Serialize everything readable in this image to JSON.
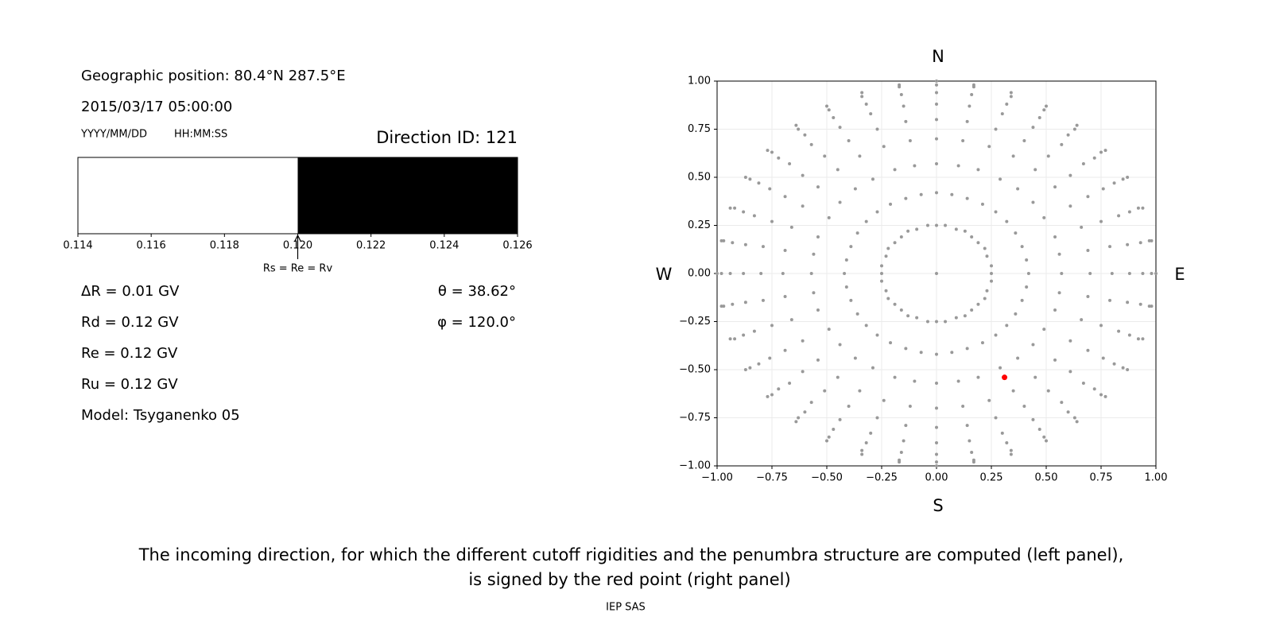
{
  "info": {
    "position": "Geographic position: 80.4°N 287.5°E",
    "datetime": "2015/03/17 05:00:00",
    "date_format": "YYYY/MM/DD",
    "time_format": "HH:MM:SS",
    "direction_id": "Direction ID: 121",
    "rigidities": [
      "ΔR = 0.01 GV",
      "Rd = 0.12 GV",
      "Re = 0.12 GV",
      "Ru = 0.12 GV",
      "Model: Tsyganenko 05"
    ],
    "angles": [
      "θ = 38.62°",
      "φ = 120.0°"
    ]
  },
  "chart_data": [
    {
      "type": "penumbra",
      "xlim": [
        0.114,
        0.126
      ],
      "xticks": [
        0.114,
        0.116,
        0.118,
        {
          "value": 0.12,
          "label": "0.120"
        },
        0.122,
        0.124,
        0.126
      ],
      "segments": [
        {
          "start": 0.114,
          "end": 0.12,
          "color": "#ffffff"
        },
        {
          "start": 0.12,
          "end": 0.126,
          "color": "#000000"
        }
      ],
      "marker": {
        "value": 0.12,
        "label": "Rs = Re = Rv"
      }
    },
    {
      "type": "scatter",
      "xlim": [
        -1,
        1
      ],
      "ylim": [
        -1,
        1
      ],
      "xticks": [
        {
          "value": -1,
          "label": "−1.00"
        },
        {
          "value": -0.75,
          "label": "−0.75"
        },
        {
          "value": -0.5,
          "label": "−0.50"
        },
        {
          "value": -0.25,
          "label": "−0.25"
        },
        {
          "value": 0,
          "label": "0.00"
        },
        {
          "value": 0.25,
          "label": "0.25"
        },
        {
          "value": 0.5,
          "label": "0.50"
        },
        {
          "value": 0.75,
          "label": "0.75"
        },
        {
          "value": 1,
          "label": "1.00"
        }
      ],
      "yticks": [
        {
          "value": -1,
          "label": "−1.00"
        },
        {
          "value": -0.75,
          "label": "−0.75"
        },
        {
          "value": -0.5,
          "label": "−0.50"
        },
        {
          "value": -0.25,
          "label": "−0.25"
        },
        {
          "value": 0,
          "label": "0.00"
        },
        {
          "value": 0.25,
          "label": "0.25"
        },
        {
          "value": 0.5,
          "label": "0.50"
        },
        {
          "value": 0.75,
          "label": "0.75"
        },
        {
          "value": 1,
          "label": "1.00"
        }
      ],
      "grid": true,
      "compass": {
        "north": "N",
        "south": "S",
        "west": "W",
        "east": "E"
      },
      "series": [
        {
          "color": "#999999",
          "x": [
            0,
            0.04,
            0.09,
            0.13,
            0.16,
            0.19,
            0.22,
            0.23,
            0.25,
            0.25,
            0.25,
            0.23,
            0.22,
            0.19,
            0.16,
            0.13,
            0.09,
            0.04,
            0,
            -0.04,
            -0.09,
            -0.13,
            -0.16,
            -0.19,
            -0.22,
            -0.23,
            -0.25,
            -0.25,
            -0.25,
            -0.23,
            -0.22,
            -0.19,
            -0.16,
            -0.13,
            -0.09,
            -0.04,
            0,
            0.07,
            0.14,
            0.21,
            0.27,
            0.32,
            0.36,
            0.39,
            0.41,
            0.42,
            0.41,
            0.39,
            0.36,
            0.32,
            0.27,
            0.21,
            0.14,
            0.07,
            0,
            -0.07,
            -0.14,
            -0.21,
            -0.27,
            -0.32,
            -0.36,
            -0.39,
            -0.41,
            -0.42,
            -0.41,
            -0.39,
            -0.36,
            -0.32,
            -0.27,
            -0.21,
            -0.14,
            -0.07,
            0,
            0.1,
            0.19,
            0.29,
            0.37,
            0.44,
            0.49,
            0.54,
            0.56,
            0.57,
            0.56,
            0.54,
            0.49,
            0.44,
            0.37,
            0.29,
            0.19,
            0.1,
            0,
            -0.1,
            -0.19,
            -0.29,
            -0.37,
            -0.44,
            -0.49,
            -0.54,
            -0.56,
            -0.57,
            -0.56,
            -0.54,
            -0.49,
            -0.44,
            -0.37,
            -0.29,
            -0.19,
            -0.1,
            0,
            0.12,
            0.24,
            0.35,
            0.45,
            0.54,
            0.61,
            0.66,
            0.69,
            0.7,
            0.69,
            0.66,
            0.61,
            0.54,
            0.45,
            0.35,
            0.24,
            0.12,
            0,
            -0.12,
            -0.24,
            -0.35,
            -0.45,
            -0.54,
            -0.61,
            -0.66,
            -0.69,
            -0.7,
            -0.69,
            -0.66,
            -0.61,
            -0.54,
            -0.45,
            -0.35,
            -0.24,
            -0.12,
            0,
            0.14,
            0.27,
            0.4,
            0.51,
            0.61,
            0.69,
            0.75,
            0.79,
            0.8,
            0.79,
            0.75,
            0.69,
            0.61,
            0.51,
            0.4,
            0.27,
            0.14,
            0,
            -0.14,
            -0.27,
            -0.4,
            -0.51,
            -0.61,
            -0.69,
            -0.75,
            -0.79,
            -0.8,
            -0.79,
            -0.75,
            -0.69,
            -0.61,
            -0.51,
            -0.4,
            -0.27,
            -0.14,
            0,
            0.15,
            0.3,
            0.44,
            0.57,
            0.67,
            0.76,
            0.83,
            0.87,
            0.88,
            0.87,
            0.83,
            0.76,
            0.67,
            0.57,
            0.44,
            0.3,
            0.15,
            0,
            -0.15,
            -0.3,
            -0.44,
            -0.57,
            -0.67,
            -0.76,
            -0.83,
            -0.87,
            -0.88,
            -0.87,
            -0.83,
            -0.76,
            -0.67,
            -0.57,
            -0.44,
            -0.3,
            -0.15,
            0,
            0.16,
            0.32,
            0.47,
            0.6,
            0.72,
            0.81,
            0.88,
            0.93,
            0.94,
            0.93,
            0.88,
            0.81,
            0.72,
            0.6,
            0.47,
            0.32,
            0.16,
            0,
            -0.16,
            -0.32,
            -0.47,
            -0.6,
            -0.72,
            -0.81,
            -0.88,
            -0.93,
            -0.94,
            -0.93,
            -0.88,
            -0.81,
            -0.72,
            -0.6,
            -0.47,
            -0.32,
            -0.16,
            0,
            0.17,
            0.34,
            0.49,
            0.63,
            0.75,
            0.85,
            0.92,
            0.97,
            0.98,
            0.97,
            0.92,
            0.85,
            0.75,
            0.63,
            0.49,
            0.34,
            0.17,
            0,
            -0.17,
            -0.34,
            -0.49,
            -0.63,
            -0.75,
            -0.85,
            -0.92,
            -0.97,
            -0.98,
            -0.97,
            -0.92,
            -0.85,
            -0.75,
            -0.63,
            -0.49,
            -0.34,
            -0.17,
            0,
            0.17,
            0.34,
            0.5,
            0.64,
            0.77,
            0.87,
            0.94,
            0.98,
            1,
            0.98,
            0.94,
            0.87,
            0.77,
            0.64,
            0.5,
            0.34,
            0.17,
            0,
            -0.17,
            -0.34,
            -0.5,
            -0.64,
            -0.77,
            -0.87,
            -0.94,
            -0.98,
            -1,
            -0.98,
            -0.94,
            -0.87,
            -0.77,
            -0.64,
            -0.5,
            -0.34,
            -0.17,
            0
          ],
          "y": [
            0.25,
            0.25,
            0.23,
            0.22,
            0.19,
            0.16,
            0.13,
            0.09,
            0.04,
            0,
            -0.04,
            -0.09,
            -0.13,
            -0.16,
            -0.19,
            -0.22,
            -0.23,
            -0.25,
            -0.25,
            -0.25,
            -0.23,
            -0.22,
            -0.19,
            -0.16,
            -0.13,
            -0.09,
            -0.04,
            0,
            0.04,
            0.09,
            0.13,
            0.16,
            0.19,
            0.22,
            0.23,
            0.25,
            0.42,
            0.41,
            0.39,
            0.36,
            0.32,
            0.27,
            0.21,
            0.14,
            0.07,
            0,
            -0.07,
            -0.14,
            -0.21,
            -0.27,
            -0.32,
            -0.36,
            -0.39,
            -0.41,
            -0.42,
            -0.41,
            -0.39,
            -0.36,
            -0.32,
            -0.27,
            -0.21,
            -0.14,
            -0.07,
            0,
            0.07,
            0.14,
            0.21,
            0.27,
            0.32,
            0.36,
            0.39,
            0.41,
            0.57,
            0.56,
            0.54,
            0.49,
            0.44,
            0.37,
            0.29,
            0.19,
            0.1,
            0,
            -0.1,
            -0.19,
            -0.29,
            -0.37,
            -0.44,
            -0.49,
            -0.54,
            -0.56,
            -0.57,
            -0.56,
            -0.54,
            -0.49,
            -0.44,
            -0.37,
            -0.29,
            -0.19,
            -0.1,
            0,
            0.1,
            0.19,
            0.29,
            0.37,
            0.44,
            0.49,
            0.54,
            0.56,
            0.7,
            0.69,
            0.66,
            0.61,
            0.54,
            0.45,
            0.35,
            0.24,
            0.12,
            0,
            -0.12,
            -0.24,
            -0.35,
            -0.45,
            -0.54,
            -0.61,
            -0.66,
            -0.69,
            -0.7,
            -0.69,
            -0.66,
            -0.61,
            -0.54,
            -0.45,
            -0.35,
            -0.24,
            -0.12,
            0,
            0.12,
            0.24,
            0.35,
            0.45,
            0.54,
            0.61,
            0.66,
            0.69,
            0.8,
            0.79,
            0.75,
            0.69,
            0.61,
            0.51,
            0.4,
            0.27,
            0.14,
            0,
            -0.14,
            -0.27,
            -0.4,
            -0.51,
            -0.61,
            -0.69,
            -0.75,
            -0.79,
            -0.8,
            -0.79,
            -0.75,
            -0.69,
            -0.61,
            -0.51,
            -0.4,
            -0.27,
            -0.14,
            0,
            0.14,
            0.27,
            0.4,
            0.51,
            0.61,
            0.69,
            0.75,
            0.79,
            0.88,
            0.87,
            0.83,
            0.76,
            0.67,
            0.57,
            0.44,
            0.3,
            0.15,
            0,
            -0.15,
            -0.3,
            -0.44,
            -0.57,
            -0.67,
            -0.76,
            -0.83,
            -0.87,
            -0.88,
            -0.87,
            -0.83,
            -0.76,
            -0.67,
            -0.57,
            -0.44,
            -0.3,
            -0.15,
            0,
            0.15,
            0.3,
            0.44,
            0.57,
            0.67,
            0.76,
            0.83,
            0.87,
            0.94,
            0.93,
            0.88,
            0.81,
            0.72,
            0.6,
            0.47,
            0.32,
            0.16,
            0,
            -0.16,
            -0.32,
            -0.47,
            -0.6,
            -0.72,
            -0.81,
            -0.88,
            -0.93,
            -0.94,
            -0.93,
            -0.88,
            -0.81,
            -0.72,
            -0.6,
            -0.47,
            -0.32,
            -0.16,
            0,
            0.16,
            0.32,
            0.47,
            0.6,
            0.72,
            0.81,
            0.88,
            0.93,
            0.98,
            0.97,
            0.92,
            0.85,
            0.75,
            0.63,
            0.49,
            0.34,
            0.17,
            0,
            -0.17,
            -0.34,
            -0.49,
            -0.63,
            -0.75,
            -0.85,
            -0.92,
            -0.97,
            -0.98,
            -0.97,
            -0.92,
            -0.85,
            -0.75,
            -0.63,
            -0.49,
            -0.34,
            -0.17,
            0,
            0.17,
            0.34,
            0.49,
            0.63,
            0.75,
            0.85,
            0.92,
            0.97,
            1,
            0.98,
            0.94,
            0.87,
            0.77,
            0.64,
            0.5,
            0.34,
            0.17,
            0,
            -0.17,
            -0.34,
            -0.5,
            -0.64,
            -0.77,
            -0.87,
            -0.94,
            -0.98,
            -1,
            -0.98,
            -0.94,
            -0.87,
            -0.77,
            -0.64,
            -0.5,
            -0.34,
            -0.17,
            0,
            0.17,
            0.34,
            0.5,
            0.64,
            0.77,
            0.87,
            0.94,
            0.98,
            0
          ]
        },
        {
          "color": "#ff0000",
          "x": [
            0.31
          ],
          "y": [
            -0.54
          ]
        }
      ]
    }
  ],
  "caption": [
    "The incoming direction, for which the different cutoff rigidities and the penumbra structure are computed (left panel),",
    "is signed by the red point (right panel)"
  ],
  "footer": "IEP SAS"
}
